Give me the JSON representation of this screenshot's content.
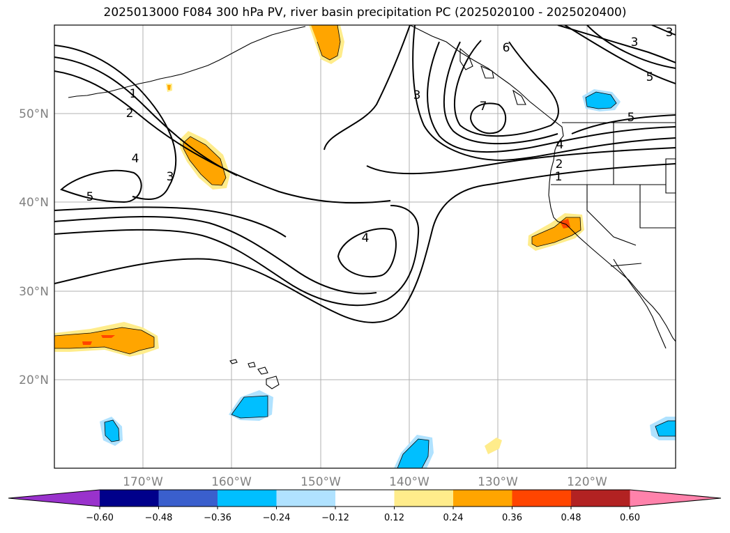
{
  "title": "2025013000 F084 300 hPa PV, river basin precipitation PC (2025020100 - 2025020400)",
  "lat_labels": [
    "50°N",
    "40°N",
    "30°N",
    "20°N"
  ],
  "lon_labels": [
    "170°W",
    "160°W",
    "150°W",
    "140°W",
    "130°W",
    "120°W"
  ],
  "colorbar": {
    "tick_labels": [
      "−0.60",
      "−0.48",
      "−0.36",
      "−0.24",
      "−0.12",
      "0.12",
      "0.24",
      "0.36",
      "0.48",
      "0.60"
    ],
    "colors": [
      "#9932cc",
      "#00008b",
      "#3a5fcd",
      "#00bfff",
      "#b0e2ff",
      "#ffffff",
      "#ffec8b",
      "#ffa500",
      "#ff4500",
      "#b22222",
      "#ff82ab"
    ]
  },
  "contour_labels": [
    "1",
    "2",
    "3",
    "4",
    "5",
    "3",
    "4",
    "3",
    "6",
    "7",
    "3",
    "5",
    "5",
    "4",
    "2",
    "1"
  ],
  "colors": {
    "positive_low": "#ffec8b",
    "positive_mid": "#ffa500",
    "positive_high": "#ff4500",
    "negative_low": "#b0e2ff",
    "negative_mid": "#00bfff"
  }
}
